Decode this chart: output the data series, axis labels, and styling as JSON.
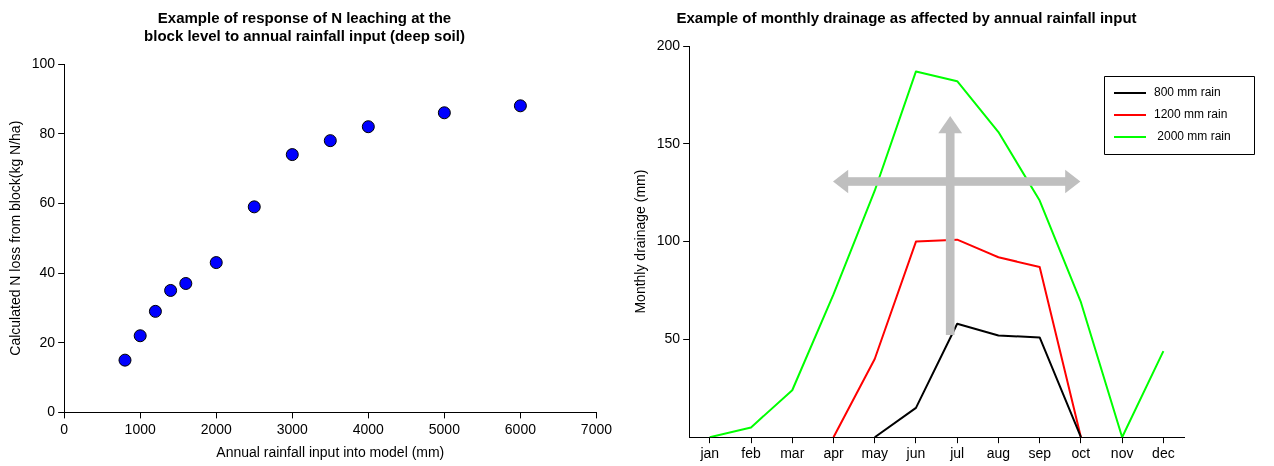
{
  "chart_data": [
    {
      "type": "scatter",
      "title": [
        "Example of response of N leaching at the",
        "block level to annual rainfall input (deep soil)"
      ],
      "xlabel": "Annual rainfall input into model (mm)",
      "ylabel": "Calculated N loss from block(kg N/ha)",
      "x": [
        800,
        1000,
        1200,
        1400,
        1600,
        2000,
        2500,
        3000,
        3500,
        4000,
        5000,
        6000
      ],
      "values": [
        15,
        22,
        29,
        35,
        37,
        43,
        59,
        74,
        78,
        82,
        86,
        88
      ],
      "color": "#0000ff",
      "marker": "circle",
      "xlim": [
        0,
        7000
      ],
      "xticks": [
        0,
        1000,
        2000,
        3000,
        4000,
        5000,
        6000,
        7000
      ],
      "ylim": [
        0,
        100
      ],
      "yticks": [
        0,
        20,
        40,
        60,
        80,
        100
      ],
      "grid": false,
      "legend": false
    },
    {
      "type": "line",
      "title": "Example of monthly drainage as affected by annual rainfall input",
      "ylabel": "Monthly drainage (mm)",
      "categories": [
        "jan",
        "feb",
        "mar",
        "apr",
        "may",
        "jun",
        "jul",
        "aug",
        "sep",
        "oct",
        "nov",
        "dec"
      ],
      "series": [
        {
          "name": "800 mm rain",
          "color": "#000000",
          "values": [
            null,
            null,
            null,
            null,
            0,
            15,
            58,
            52,
            51,
            0,
            null,
            null
          ]
        },
        {
          "name": "1200 mm rain",
          "color": "#ff0000",
          "values": [
            null,
            null,
            null,
            0,
            40,
            100,
            101,
            92,
            87,
            0,
            null,
            null
          ]
        },
        {
          "name": " 2000 mm rain",
          "color": "#00ff00",
          "values": [
            0,
            5,
            24,
            73,
            126,
            187,
            182,
            156,
            121,
            69,
            0,
            44
          ]
        }
      ],
      "ylim": [
        0,
        200
      ],
      "yticks": [
        50,
        100,
        150,
        200
      ],
      "grid": false,
      "legend": "top right",
      "marker": "none",
      "line_style": "solid"
    }
  ]
}
